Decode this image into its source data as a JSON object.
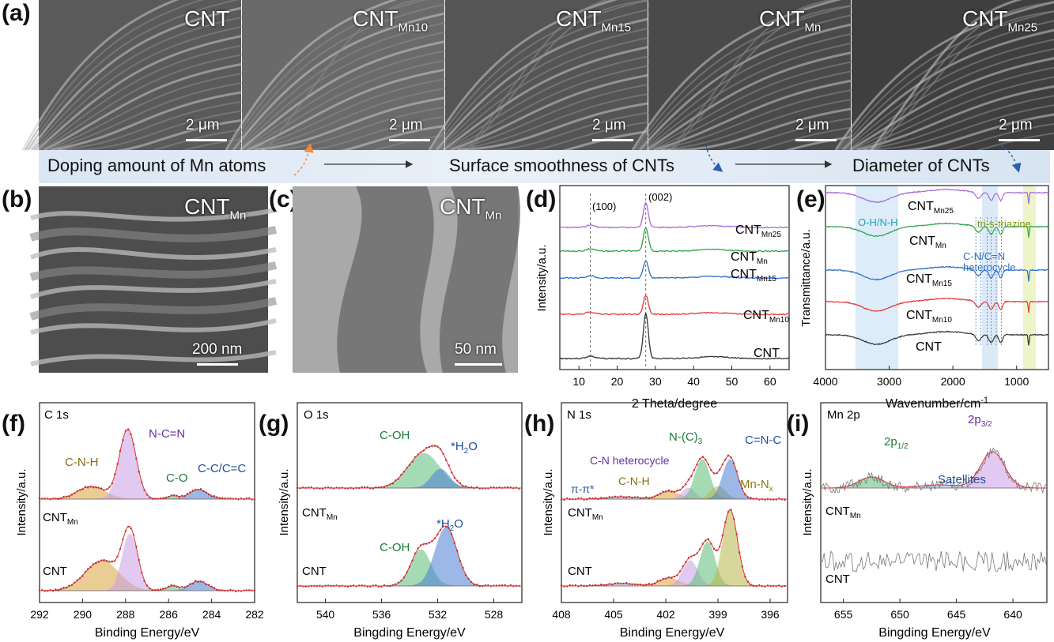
{
  "panel_labels": {
    "a": "(a)",
    "b": "(b)",
    "c": "(c)",
    "d": "(d)",
    "e": "(e)",
    "f": "(f)",
    "g": "(g)",
    "h": "(h)",
    "i": "(i)"
  },
  "sem_images": [
    {
      "main": "CNT",
      "sub": "",
      "scale": "2 μm"
    },
    {
      "main": "CNT",
      "sub": "Mn10",
      "scale": "2 μm"
    },
    {
      "main": "CNT",
      "sub": "Mn15",
      "scale": "2 μm"
    },
    {
      "main": "CNT",
      "sub": "Mn",
      "scale": "2 μm"
    },
    {
      "main": "CNT",
      "sub": "Mn25",
      "scale": "2 μm"
    }
  ],
  "banner": {
    "left": "Doping amount of Mn atoms",
    "middle": "Surface smoothness of CNTs",
    "right": "Diameter of CNTs"
  },
  "panel_b": {
    "main": "CNT",
    "sub": "Mn",
    "scale": "200 nm"
  },
  "panel_c": {
    "main": "CNT",
    "sub": "Mn",
    "scale": "50 nm"
  },
  "chart_data": [
    {
      "panel": "d",
      "type": "line",
      "xlabel": "2 Theta/degree",
      "ylabel": "Intensity/a.u.",
      "xlim": [
        5,
        65
      ],
      "xticks": [
        10,
        20,
        30,
        40,
        50,
        60
      ],
      "annotations": [
        "(100)",
        "(002)"
      ],
      "reference_lines_x": [
        13,
        27.5
      ],
      "series": [
        {
          "name": "CNT",
          "color": "#333333"
        },
        {
          "name": "CNTMn10",
          "color": "#e03a3a"
        },
        {
          "name": "CNTMn15",
          "color": "#2e6fc9"
        },
        {
          "name": "CNTMn",
          "color": "#2ea34b"
        },
        {
          "name": "CNTMn25",
          "color": "#a66ad8"
        }
      ],
      "series_labels": [
        {
          "main": "CNT",
          "sub": ""
        },
        {
          "main": "CNT",
          "sub": "Mn10"
        },
        {
          "main": "CNT",
          "sub": "Mn15"
        },
        {
          "main": "CNT",
          "sub": "Mn"
        },
        {
          "main": "CNT",
          "sub": "Mn25"
        }
      ]
    },
    {
      "panel": "e",
      "type": "line",
      "xlabel": "Wavenumber/cm",
      "xlabel_sup": "-1",
      "ylabel": "Transmittance/a.u.",
      "xlim": [
        4000,
        500
      ],
      "xticks": [
        4000,
        3000,
        2000,
        1000
      ],
      "annotations": [
        "O-H/N-H",
        "tri-s-triazine",
        "C-N/C=N",
        "heterocycle"
      ],
      "series": [
        {
          "name": "CNT",
          "color": "#333333"
        },
        {
          "name": "CNTMn10",
          "color": "#e03a3a"
        },
        {
          "name": "CNTMn15",
          "color": "#2e6fc9"
        },
        {
          "name": "CNTMn",
          "color": "#2ea34b"
        },
        {
          "name": "CNTMn25",
          "color": "#a66ad8"
        }
      ],
      "series_labels": [
        {
          "main": "CNT",
          "sub": ""
        },
        {
          "main": "CNT",
          "sub": "Mn10"
        },
        {
          "main": "CNT",
          "sub": "Mn15"
        },
        {
          "main": "CNT",
          "sub": "Mn"
        },
        {
          "main": "CNT",
          "sub": "Mn25"
        }
      ]
    },
    {
      "panel": "f",
      "type": "line",
      "title": "C 1s",
      "xlabel": "Binding Energy/eV",
      "ylabel": "Intensity/a.u.",
      "xlim": [
        292,
        282
      ],
      "xticks": [
        292,
        290,
        288,
        286,
        284,
        282
      ],
      "peaks": [
        "C-N-H",
        "N-C=N",
        "C-O",
        "C-C/C=C"
      ],
      "samples": [
        {
          "main": "CNT",
          "sub": "Mn"
        },
        {
          "main": "CNT",
          "sub": ""
        }
      ]
    },
    {
      "panel": "g",
      "type": "line",
      "title": "O 1s",
      "xlabel": "Bingding Energy/eV",
      "ylabel": "Intensity/a.u.",
      "xlim": [
        542,
        526
      ],
      "xticks": [
        540,
        536,
        532,
        528
      ],
      "peaks": [
        "C-OH",
        "*H2O"
      ],
      "samples": [
        {
          "main": "CNT",
          "sub": "Mn"
        },
        {
          "main": "CNT",
          "sub": ""
        }
      ]
    },
    {
      "panel": "h",
      "type": "line",
      "title": "N 1s",
      "xlabel": "Binding Energy/eV",
      "ylabel": "Intensity/a.u.",
      "xlim": [
        408,
        395
      ],
      "xticks": [
        408,
        405,
        402,
        399,
        396
      ],
      "peaks": [
        "π-π*",
        "C-N-H",
        "C-N heterocycle",
        "N-(C)3",
        "C=N-C",
        "Mn-Nx"
      ],
      "samples": [
        {
          "main": "CNT",
          "sub": "Mn"
        },
        {
          "main": "CNT",
          "sub": ""
        }
      ]
    },
    {
      "panel": "i",
      "type": "line",
      "title": "Mn 2p",
      "xlabel": "Bingding Energy/eV",
      "ylabel": "Intensity/a.u.",
      "xlim": [
        657,
        637
      ],
      "xticks": [
        655,
        650,
        645,
        640
      ],
      "peaks": [
        "2p1/2",
        "2p3/2",
        "Satellites"
      ],
      "samples": [
        {
          "main": "CNT",
          "sub": "Mn"
        },
        {
          "main": "CNT",
          "sub": ""
        }
      ]
    }
  ],
  "text": {
    "d_ylabel": "Intensity/a.u.",
    "d_xlabel": "2 Theta/degree",
    "d_ann100": "(100)",
    "d_ann002": "(002)",
    "e_ylabel": "Transmittance/a.u.",
    "e_xlabel": "Wavenumber/cm",
    "e_xsup": "-1",
    "e_ohnh": "O-H/N-H",
    "e_tri": "tri-s-triazine",
    "e_cn": "C-N/C=N",
    "e_het": "heterocycle",
    "f_title": "C 1s",
    "f_cnh": "C-N-H",
    "f_ncn": "N-C=N",
    "f_co": "C-O",
    "f_cc": "C-C/C=C",
    "g_title": "O 1s",
    "g_coh": "C-OH",
    "g_coh2": "C-OH",
    "g_h2o": "*H",
    "g_h2o_sub": "2",
    "g_h2o_end": "O",
    "h_title": "N 1s",
    "h_pipi": "π-π*",
    "h_cnh": "C-N-H",
    "h_het": "C-N heterocycle",
    "h_nc3": "N-(C)",
    "h_nc3_sub": "3",
    "h_cnc": "C=N-C",
    "h_mnn": "Mn-N",
    "h_mnn_sub": "x",
    "i_title": "Mn 2p",
    "i_p12": "2p",
    "i_p12_sub": "1/2",
    "i_p32": "2p",
    "i_p32_sub": "3/2",
    "i_sat": "Satellites",
    "int_label": "Intensity/a.u.",
    "be_label": "Binding Energy/eV",
    "bing_label": "Bingding Energy/eV"
  }
}
